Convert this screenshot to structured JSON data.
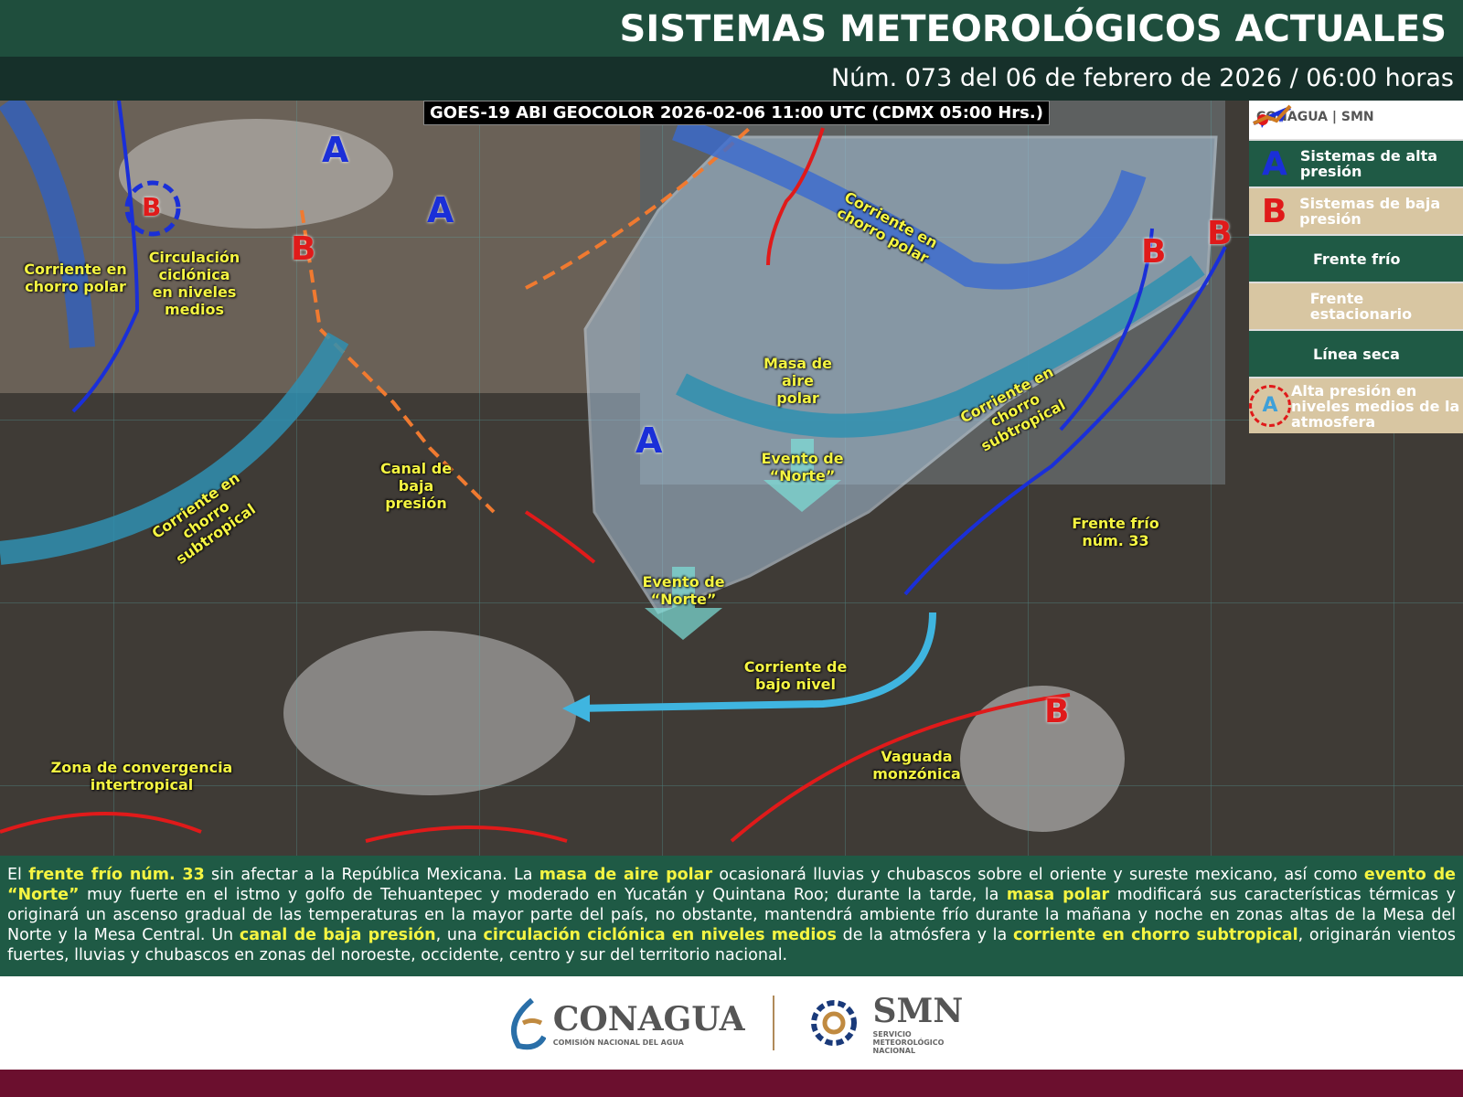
{
  "header": {
    "title": "SISTEMAS METEOROLÓGICOS ACTUALES",
    "subtitle": "Núm. 073 del 06 de febrero de 2026 / 06:00 horas"
  },
  "map": {
    "satellite_caption": "GOES-19 ABI GEOCOLOR 2026-02-06 11:00 UTC (CDMX  05:00 Hrs.)",
    "high_symbol": "A",
    "low_symbol": "B",
    "labels": {
      "chorro_polar_w": "Corriente en chorro polar",
      "circulacion": "Circulación ciclónica en niveles medios",
      "chorro_polar_e": "Corriente en chorro polar",
      "masa": "Masa de aire polar",
      "chorro_sub_e": "Corriente en chorro subtropical",
      "chorro_sub_w": "Corriente en chorro subtropical",
      "canal": "Canal de baja presión",
      "norte1": "Evento de “Norte”",
      "norte2": "Evento de “Norte”",
      "frente": "Frente frío núm. 33",
      "bajo_nivel": "Corriente de bajo nivel",
      "vaguada": "Vaguada monzónica",
      "zci": "Zona de convergencia intertropical"
    },
    "colors": {
      "high": "#1a2fd8",
      "low": "#e01a1a",
      "cold_front": "#1a2fd8",
      "dry_line": "#f07a30",
      "jet": "#2f8fb0",
      "polar_mass": "#a9c4dc"
    }
  },
  "legend": {
    "logo_left": "CONAGUA",
    "logo_right": "SMN",
    "items": [
      {
        "symbol": "A",
        "label": "Sistemas de alta presión"
      },
      {
        "symbol": "B",
        "label": "Sistemas de baja presión"
      },
      {
        "symbol": "cold-front-icon",
        "label": "Frente frío"
      },
      {
        "symbol": "stationary-front-icon",
        "label": "Frente estacionario"
      },
      {
        "symbol": "dry-line-icon",
        "label": "Línea seca"
      },
      {
        "symbol": "A",
        "label": "Alta presión en niveles medios de la atmosfera"
      }
    ]
  },
  "description": {
    "s0": "El ",
    "h0": "frente frío núm. 33",
    "s1": " sin afectar a la República Mexicana. La ",
    "h1": "masa de aire polar",
    "s2": " ocasionará lluvias y chubascos sobre el oriente y sureste mexicano, así como ",
    "h2": "evento de “Norte”",
    "s3": " muy fuerte en el istmo y golfo de Tehuantepec y moderado en Yucatán y Quintana Roo; durante la tarde, la ",
    "h3": "masa polar",
    "s4": " modificará sus características térmicas y originará un ascenso gradual de las temperaturas en la mayor parte del país, no obstante, mantendrá ambiente frío durante la mañana y noche en zonas altas de la Mesa del Norte y la Mesa Central. Un ",
    "h4": "canal de baja presión",
    "s5": ", una ",
    "h5": "circulación ciclónica en niveles medios",
    "s6": " de la atmósfera y la ",
    "h6": "corriente en chorro subtropical",
    "s7": ", originarán vientos fuertes, lluvias y chubascos en zonas del noroeste, occidente, centro y sur del territorio nacional."
  },
  "footer": {
    "conagua": "CONAGUA",
    "conagua_sub": "COMISIÓN NACIONAL DEL AGUA",
    "smn": "SMN",
    "smn_sub": "SERVICIO METEOROLÓGICO NACIONAL"
  }
}
